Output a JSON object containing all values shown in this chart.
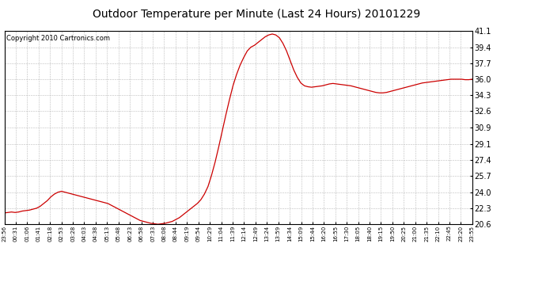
{
  "title": "Outdoor Temperature per Minute (Last 24 Hours) 20101229",
  "copyright": "Copyright 2010 Cartronics.com",
  "line_color": "#cc0000",
  "background_color": "#ffffff",
  "plot_background_color": "#ffffff",
  "grid_color": "#aaaaaa",
  "yticks": [
    20.6,
    22.3,
    24.0,
    25.7,
    27.4,
    29.1,
    30.9,
    32.6,
    34.3,
    36.0,
    37.7,
    39.4,
    41.1
  ],
  "ylim": [
    20.6,
    41.1
  ],
  "xtick_labels": [
    "23:56",
    "00:31",
    "01:06",
    "01:41",
    "02:18",
    "02:53",
    "03:28",
    "04:03",
    "04:38",
    "05:13",
    "05:48",
    "06:23",
    "06:58",
    "07:33",
    "08:08",
    "08:44",
    "09:19",
    "09:54",
    "10:29",
    "11:04",
    "11:39",
    "12:14",
    "12:49",
    "13:24",
    "13:59",
    "14:34",
    "15:09",
    "15:44",
    "16:20",
    "16:55",
    "17:30",
    "18:05",
    "18:40",
    "19:15",
    "19:50",
    "20:25",
    "21:00",
    "21:35",
    "22:10",
    "22:45",
    "23:20",
    "23:55"
  ],
  "temperature_data": [
    21.8,
    21.85,
    21.9,
    21.85,
    21.9,
    22.0,
    22.05,
    22.1,
    22.2,
    22.3,
    22.5,
    22.8,
    23.1,
    23.5,
    23.8,
    24.0,
    24.1,
    24.0,
    23.9,
    23.8,
    23.7,
    23.6,
    23.5,
    23.4,
    23.3,
    23.2,
    23.1,
    23.0,
    22.9,
    22.8,
    22.6,
    22.4,
    22.2,
    22.0,
    21.8,
    21.6,
    21.4,
    21.2,
    21.0,
    20.9,
    20.8,
    20.7,
    20.65,
    20.6,
    20.65,
    20.7,
    20.8,
    20.9,
    21.1,
    21.3,
    21.6,
    21.9,
    22.2,
    22.5,
    22.8,
    23.2,
    23.8,
    24.6,
    25.8,
    27.2,
    28.8,
    30.5,
    32.2,
    33.8,
    35.3,
    36.5,
    37.5,
    38.3,
    39.0,
    39.4,
    39.6,
    39.9,
    40.2,
    40.5,
    40.7,
    40.8,
    40.7,
    40.4,
    39.8,
    39.0,
    38.0,
    37.0,
    36.2,
    35.6,
    35.3,
    35.2,
    35.15,
    35.2,
    35.25,
    35.3,
    35.4,
    35.5,
    35.55,
    35.5,
    35.45,
    35.4,
    35.35,
    35.3,
    35.2,
    35.1,
    35.0,
    34.9,
    34.8,
    34.7,
    34.6,
    34.55,
    34.55,
    34.6,
    34.7,
    34.8,
    34.9,
    35.0,
    35.1,
    35.2,
    35.3,
    35.4,
    35.5,
    35.6,
    35.65,
    35.7,
    35.75,
    35.8,
    35.85,
    35.9,
    35.95,
    36.0,
    36.0,
    36.0,
    36.0,
    35.95,
    35.95,
    36.0
  ],
  "title_fontsize": 10,
  "copyright_fontsize": 6,
  "ytick_fontsize": 7,
  "xtick_fontsize": 5
}
